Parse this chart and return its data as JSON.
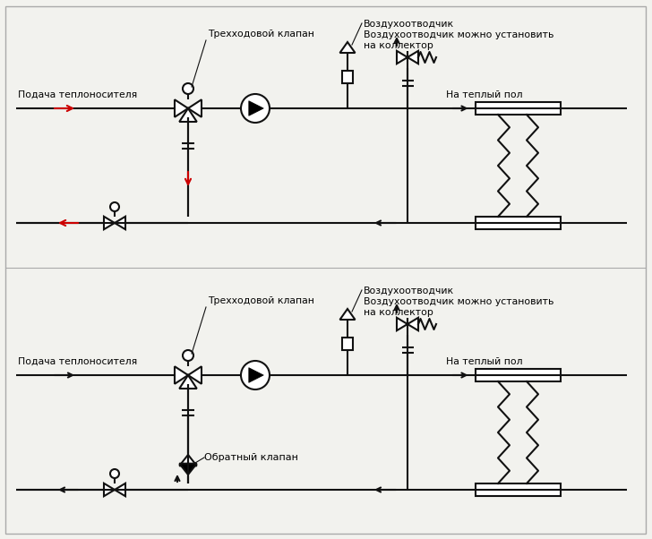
{
  "bg_color": "#f2f2ee",
  "line_color": "#111111",
  "red_color": "#cc0000",
  "lw": 1.5,
  "font_size": 7.5,
  "label_supply": "Подача теплоносителя",
  "label_three_way": "Трехходовой клапан",
  "label_air_vent1": "Воздухоотводчик",
  "label_air_vent2": "Воздухоотводчик можно установить",
  "label_air_vent3": "на коллектор",
  "label_warm_floor": "На теплый пол",
  "label_check_valve": "Обратный клапан",
  "diag1": {
    "red_arrows": true,
    "check_valve": false
  },
  "diag2": {
    "red_arrows": false,
    "check_valve": true
  }
}
